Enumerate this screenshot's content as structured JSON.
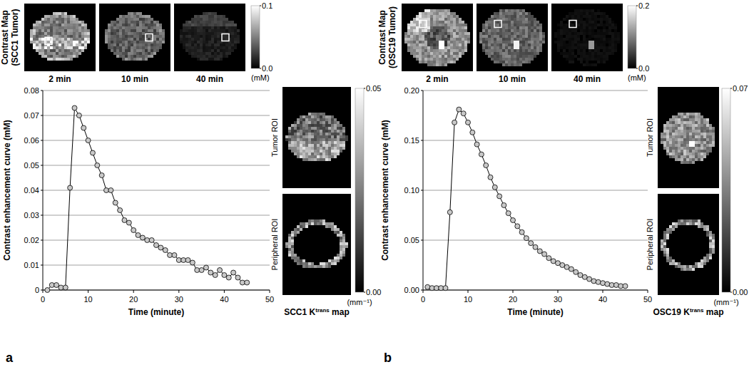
{
  "chart_data": [
    {
      "type": "line",
      "x_label": "Time (minute)",
      "y_label": "Contrast enhancement curve (mM)",
      "x": [
        1,
        2,
        3,
        4,
        5,
        6,
        7,
        8,
        9,
        10,
        11,
        12,
        13,
        14,
        15,
        16,
        17,
        18,
        19,
        20,
        21,
        22,
        23,
        24,
        25,
        26,
        27,
        28,
        29,
        30,
        31,
        32,
        33,
        34,
        35,
        36,
        37,
        38,
        39,
        40,
        41,
        42,
        43,
        44,
        45
      ],
      "values": [
        0,
        0.002,
        0.002,
        0.001,
        0.001,
        0.041,
        0.073,
        0.07,
        0.065,
        0.06,
        0.055,
        0.05,
        0.046,
        0.04,
        0.04,
        0.035,
        0.032,
        0.028,
        0.027,
        0.024,
        0.022,
        0.021,
        0.02,
        0.02,
        0.018,
        0.017,
        0.016,
        0.014,
        0.014,
        0.012,
        0.012,
        0.012,
        0.011,
        0.008,
        0.008,
        0.009,
        0.007,
        0.006,
        0.008,
        0.006,
        0.005,
        0.007,
        0.005,
        0.003,
        0.003
      ],
      "color": "#000000",
      "marker": "circle",
      "xlim": [
        0,
        50
      ],
      "xticks": [
        0,
        10,
        20,
        30,
        40,
        50
      ],
      "ylim": [
        0,
        0.08
      ],
      "yticks": [
        0,
        0.01,
        0.02,
        0.03,
        0.04,
        0.05,
        0.06,
        0.07,
        0.08
      ],
      "grid": true
    },
    {
      "type": "line",
      "x_label": "Time (minute)",
      "y_label": "Contrast enhancement curve (mM)",
      "x": [
        1,
        2,
        3,
        4,
        5,
        6,
        7,
        8,
        9,
        10,
        11,
        12,
        13,
        14,
        15,
        16,
        17,
        18,
        19,
        20,
        21,
        22,
        23,
        24,
        25,
        26,
        27,
        28,
        29,
        30,
        31,
        32,
        33,
        34,
        35,
        36,
        37,
        38,
        39,
        40,
        41,
        42,
        43,
        44,
        45
      ],
      "values": [
        0.003,
        0.002,
        0.002,
        0.002,
        0.002,
        0.078,
        0.168,
        0.181,
        0.177,
        0.168,
        0.158,
        0.146,
        0.136,
        0.125,
        0.113,
        0.103,
        0.094,
        0.085,
        0.077,
        0.07,
        0.064,
        0.058,
        0.052,
        0.047,
        0.043,
        0.039,
        0.036,
        0.032,
        0.029,
        0.027,
        0.025,
        0.023,
        0.021,
        0.018,
        0.015,
        0.013,
        0.011,
        0.009,
        0.008,
        0.007,
        0.006,
        0.005,
        0.005,
        0.004,
        0.004
      ],
      "color": "#000000",
      "marker": "circle",
      "xlim": [
        0,
        50
      ],
      "xticks": [
        0,
        10,
        20,
        30,
        40,
        50
      ],
      "ylim": [
        0,
        0.2
      ],
      "yticks": [
        {
          "value": 0,
          "label": "0.00"
        },
        0.05,
        {
          "value": 0.1,
          "label": "0.10"
        },
        0.15,
        {
          "value": 0.2,
          "label": "0.20"
        }
      ],
      "grid": true
    }
  ],
  "figure": {
    "panels": [
      {
        "letter": "a",
        "map_title": [
          "Contrast Map",
          "(SCC1 Tumor)"
        ],
        "map_times": [
          "2 min",
          "10 min",
          "40 min"
        ],
        "map_colorbar": {
          "range": [
            0,
            0.1
          ],
          "ticks": [
            0.1,
            {
              "value": 0,
              "label": "0.0"
            }
          ],
          "unit": "(mM)"
        },
        "roi_labels": [
          "Tumor ROI",
          "Peripheral ROI"
        ],
        "ktrans_caption": [
          "SCC1 K",
          "trans",
          " map"
        ],
        "ktrans_colorbar": {
          "range": [
            0,
            0.05
          ],
          "ticks": [
            0.05,
            {
              "value": 0,
              "label": "0.00"
            }
          ],
          "unit": "(mm⁻¹)"
        }
      },
      {
        "letter": "b",
        "map_title": [
          "Contrast Map",
          "(OSC19 Tumor)"
        ],
        "map_times": [
          "2 min",
          "10 min",
          "40 min"
        ],
        "map_colorbar": {
          "range": [
            0,
            0.2
          ],
          "ticks": [
            0.2,
            {
              "value": 0,
              "label": "0.0"
            }
          ],
          "unit": "(mM)"
        },
        "roi_labels": [
          "Tumor ROI",
          "Peripheral ROI"
        ],
        "ktrans_caption": [
          "OSC19 K",
          "trans",
          " map"
        ],
        "ktrans_colorbar": {
          "range": [
            0,
            0.07
          ],
          "ticks": [
            0.07,
            {
              "value": 0,
              "label": "0.00"
            }
          ],
          "unit": "(mm⁻¹)"
        }
      }
    ]
  }
}
